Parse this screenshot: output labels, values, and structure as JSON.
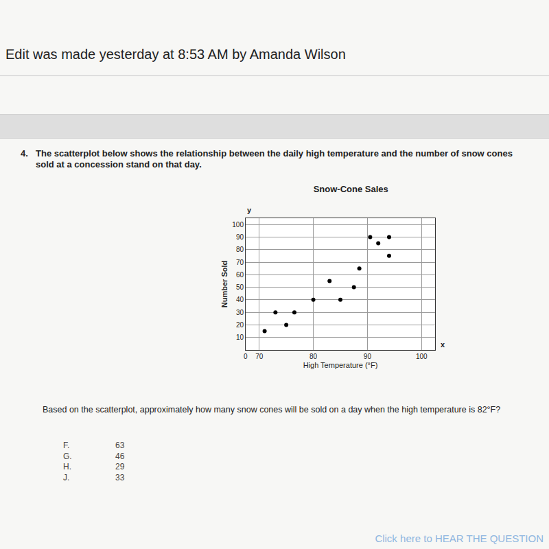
{
  "header": {
    "edit_note": "Edit was made yesterday at 8:53 AM by Amanda Wilson"
  },
  "question": {
    "number": "4.",
    "intro": "The scatterplot below shows the relationship between the daily high temperature and the number of snow cones sold at a concession stand on that day.",
    "prompt": "Based on the scatterplot, approximately how many snow cones will be sold on a day when the high temperature is 82°F?",
    "choices": [
      {
        "letter": "F.",
        "value": 63
      },
      {
        "letter": "G.",
        "value": 46
      },
      {
        "letter": "H.",
        "value": 29
      },
      {
        "letter": "J.",
        "value": 33
      }
    ]
  },
  "footer": {
    "link": "Click here to HEAR THE QUESTION"
  },
  "chart_data": {
    "type": "scatter",
    "title": "Snow-Cone Sales",
    "x_label": "High Temperature (°F)",
    "y_label": "Number Sold",
    "axis_letters": {
      "x": "x",
      "y": "y"
    },
    "origin_label": "0",
    "x": [
      71,
      73,
      75,
      76.5,
      80,
      83,
      85,
      87.5,
      88.5,
      90.5,
      92,
      94,
      94
    ],
    "values": [
      15,
      30,
      20,
      30,
      40,
      55,
      40,
      50,
      65,
      90,
      85,
      90,
      75
    ],
    "color": "#000000",
    "marker": "circle",
    "xlim": [
      67.5,
      102.5
    ],
    "xticks": [
      70,
      80,
      90,
      100
    ],
    "ylim": [
      0,
      105
    ],
    "yticks": [
      10,
      20,
      30,
      40,
      50,
      60,
      70,
      80,
      90,
      100
    ],
    "grid": true
  }
}
